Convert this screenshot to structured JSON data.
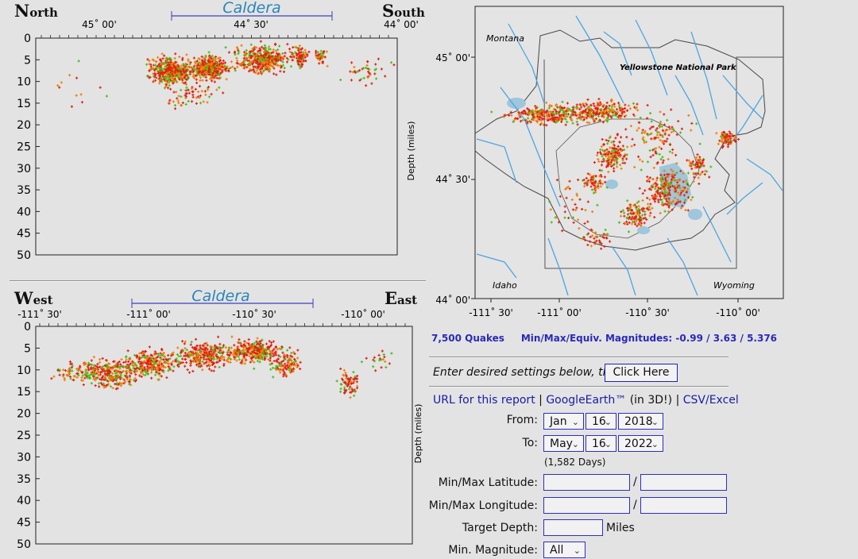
{
  "ns_section": {
    "left_big": "N",
    "left_rest": "orth",
    "right_big": "S",
    "right_rest": "outh",
    "caldera": "Caldera",
    "ticks": [
      "45˚ 00'",
      "44˚ 30'",
      "44˚ 00'"
    ],
    "depth_ticks": [
      "0",
      "5",
      "10",
      "15",
      "20",
      "25",
      "30",
      "35",
      "40",
      "45",
      "50"
    ],
    "depth_label": "Depth (miles)"
  },
  "we_section": {
    "left_big": "W",
    "left_rest": "est",
    "right_big": "E",
    "right_rest": "ast",
    "caldera": "Caldera",
    "ticks": [
      "-111˚ 30'",
      "-111˚ 00'",
      "-110˚ 30'",
      "-110˚ 00'"
    ],
    "depth_ticks": [
      "0",
      "5",
      "10",
      "15",
      "20",
      "25",
      "30",
      "35",
      "40",
      "45",
      "50"
    ],
    "depth_label": "Depth (miles)"
  },
  "map": {
    "state_labels": [
      "Montana",
      "Idaho",
      "Wyoming"
    ],
    "park_label": "Yellowstone National Park",
    "lat_ticks": [
      "45˚ 00'",
      "44˚ 30'",
      "44˚ 00'"
    ],
    "lon_ticks": [
      "-111˚ 30'",
      "-111˚ 00'",
      "-110˚ 30'",
      "-110˚ 00'"
    ]
  },
  "stats": {
    "quakes": "7,500 Quakes",
    "magnitudes": "Min/Max/Equiv. Magnitudes: -0.99 / 3.63 / 5.376"
  },
  "form": {
    "prompt": "Enter desired settings below, then",
    "click_label": "Click Here",
    "url_link": "URL for this report",
    "sep": "|",
    "google_link": "GoogleEarth™",
    "in3d": "(in 3D!)",
    "csv_link": "CSV/Excel",
    "from_label": "From:",
    "to_label": "To:",
    "from": {
      "month": "Jan",
      "day": "16",
      "year": "2018"
    },
    "to": {
      "month": "May",
      "day": "16",
      "year": "2022"
    },
    "days": "(1,582 Days)",
    "lat_label": "Min/Max Latitude:",
    "lon_label": "Min/Max Longitude:",
    "slash": "/",
    "depth_label": "Target Depth:",
    "depth_unit": "Miles",
    "mag_label": "Min. Magnitude:",
    "mag_value": "All",
    "lat_min": "",
    "lat_max": "",
    "lon_min": "",
    "lon_max": "",
    "target_depth": ""
  },
  "colors": {
    "quake_red": "#e01e10",
    "quake_orange": "#f07d00",
    "quake_green": "#40c010",
    "water": "#5aaee0",
    "link": "#1a1aa8"
  }
}
